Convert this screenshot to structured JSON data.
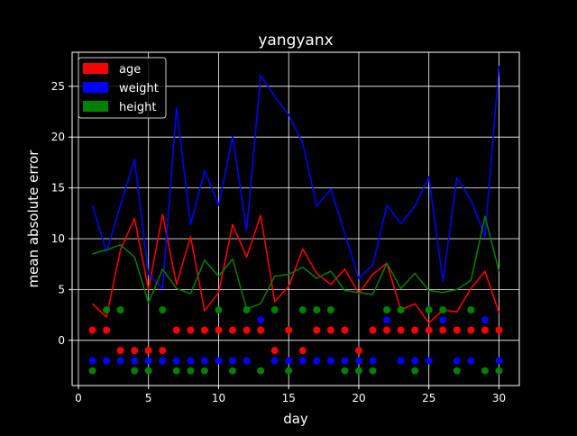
{
  "chart_data": {
    "type": "line",
    "title": "yangyanx",
    "xlabel": "day",
    "ylabel": "mean absolute error",
    "xlim": [
      -0.45,
      31.45
    ],
    "ylim": [
      -4.45,
      28.35
    ],
    "xticks": [
      0,
      5,
      10,
      15,
      20,
      25,
      30
    ],
    "yticks": [
      0,
      5,
      10,
      15,
      20,
      25
    ],
    "grid": true,
    "legend_position": "top-left",
    "colors": {
      "background": "#000000",
      "axes": "#ffffff",
      "grid": "#ffffff"
    },
    "x": [
      1,
      2,
      3,
      4,
      5,
      6,
      7,
      8,
      9,
      10,
      11,
      12,
      13,
      14,
      15,
      16,
      17,
      18,
      19,
      20,
      21,
      22,
      23,
      24,
      25,
      26,
      27,
      28,
      29,
      30
    ],
    "series": [
      {
        "name": "age",
        "color": "#ff0000",
        "values": [
          3.6,
          2.3,
          8.9,
          12.0,
          5.0,
          12.4,
          5.5,
          10.2,
          2.9,
          4.7,
          11.4,
          8.2,
          12.3,
          3.8,
          5.3,
          9.0,
          6.6,
          5.5,
          7.0,
          4.6,
          6.5,
          7.6,
          3.0,
          3.6,
          1.7,
          3.0,
          2.8,
          5.1,
          6.8,
          2.7
        ],
        "markers": [
          1,
          1,
          -1,
          -1,
          -1,
          -1,
          1,
          1,
          1,
          1,
          1,
          1,
          1,
          -1,
          1,
          -1,
          1,
          1,
          1,
          -1,
          1,
          1,
          1,
          1,
          1,
          1,
          1,
          1,
          1,
          1
        ]
      },
      {
        "name": "weight",
        "color": "#0000ff",
        "values": [
          13.3,
          8.7,
          13.3,
          17.8,
          6.5,
          5.1,
          22.9,
          11.4,
          16.7,
          13.3,
          20.1,
          10.8,
          26.1,
          24.0,
          22.2,
          19.4,
          13.2,
          14.9,
          10.5,
          6.1,
          7.4,
          13.3,
          11.5,
          13.2,
          16.1,
          5.8,
          16.0,
          13.8,
          10.2,
          27.0
        ],
        "markers": [
          -2,
          -2,
          -2,
          -2,
          -2,
          -2,
          -2,
          -2,
          -2,
          -2,
          -2,
          -2,
          2,
          -2,
          -2,
          -2,
          -2,
          -2,
          -2,
          -2,
          -2,
          2,
          -2,
          -2,
          -2,
          2,
          -2,
          -2,
          2,
          -2
        ]
      },
      {
        "name": "height",
        "color": "#008000",
        "values": [
          8.5,
          8.9,
          9.4,
          8.2,
          3.7,
          7.0,
          5.1,
          4.6,
          7.9,
          6.3,
          8.0,
          3.1,
          3.6,
          6.3,
          6.5,
          7.2,
          6.1,
          6.8,
          4.9,
          4.7,
          4.5,
          7.6,
          5.1,
          6.6,
          4.9,
          4.7,
          5.0,
          5.9,
          12.2,
          6.8
        ],
        "markers": [
          -3,
          3,
          3,
          -3,
          -3,
          3,
          -3,
          -3,
          -3,
          3,
          -3,
          3,
          -3,
          3,
          -3,
          3,
          3,
          3,
          -3,
          -3,
          -3,
          3,
          3,
          -3,
          3,
          3,
          -3,
          3,
          -3,
          -3
        ]
      }
    ]
  }
}
